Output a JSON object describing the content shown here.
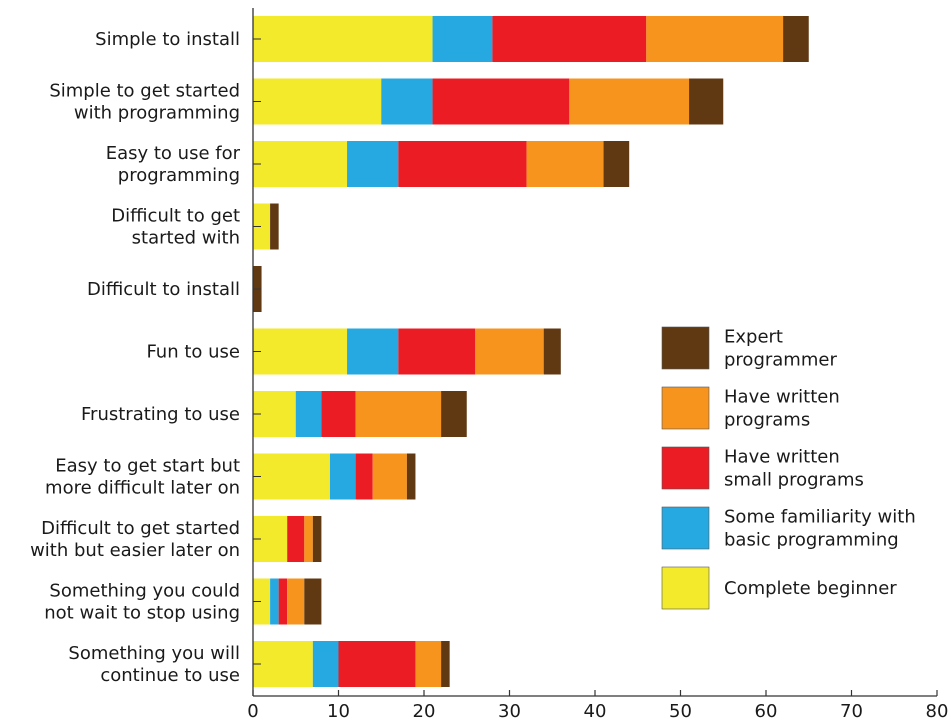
{
  "chart_data": {
    "type": "bar",
    "orientation": "horizontal",
    "stacked": true,
    "categories": [
      [
        "Simple to install"
      ],
      [
        "Simple to get started",
        "with programming"
      ],
      [
        "Easy to use for",
        "programming"
      ],
      [
        "Difficult to get",
        "started with"
      ],
      [
        "Difficult to install"
      ],
      [
        "Fun to use"
      ],
      [
        "Frustrating to use"
      ],
      [
        "Easy to get start but",
        "more difficult later on"
      ],
      [
        "Difficult to get started",
        "with but easier later on"
      ],
      [
        "Something you could",
        "not wait to stop using"
      ],
      [
        "Something you will",
        "continue to use"
      ]
    ],
    "series": [
      {
        "name": "Complete beginner",
        "color": "#f2ea2b",
        "values": [
          21,
          15,
          11,
          2,
          0,
          11,
          5,
          9,
          4,
          2,
          7
        ]
      },
      {
        "name": "Some familiarity with basic programming",
        "color": "#26a9e0",
        "values": [
          7,
          6,
          6,
          0,
          0,
          6,
          3,
          3,
          0,
          1,
          3
        ]
      },
      {
        "name": "Have written small programs",
        "color": "#ec1c24",
        "values": [
          18,
          16,
          15,
          0,
          0,
          9,
          4,
          2,
          2,
          1,
          9
        ]
      },
      {
        "name": "Have written programs",
        "color": "#f7941d",
        "values": [
          16,
          14,
          9,
          0,
          0,
          8,
          10,
          4,
          1,
          2,
          3
        ]
      },
      {
        "name": "Expert programmer",
        "color": "#603913",
        "values": [
          3,
          4,
          3,
          1,
          1,
          2,
          3,
          1,
          1,
          2,
          1
        ]
      }
    ],
    "xlim": [
      0,
      80
    ],
    "xticks": [
      0,
      10,
      20,
      30,
      40,
      50,
      60,
      70,
      80
    ],
    "legend": {
      "placement": "right",
      "order": [
        4,
        3,
        2,
        1,
        0
      ],
      "labels": [
        [
          "Expert",
          "programmer"
        ],
        [
          "Have written",
          "programs"
        ],
        [
          "Have written",
          "small programs"
        ],
        [
          "Some familiarity with",
          "basic programming"
        ],
        [
          "Complete beginner"
        ]
      ]
    },
    "title": "",
    "xlabel": "",
    "ylabel": ""
  }
}
